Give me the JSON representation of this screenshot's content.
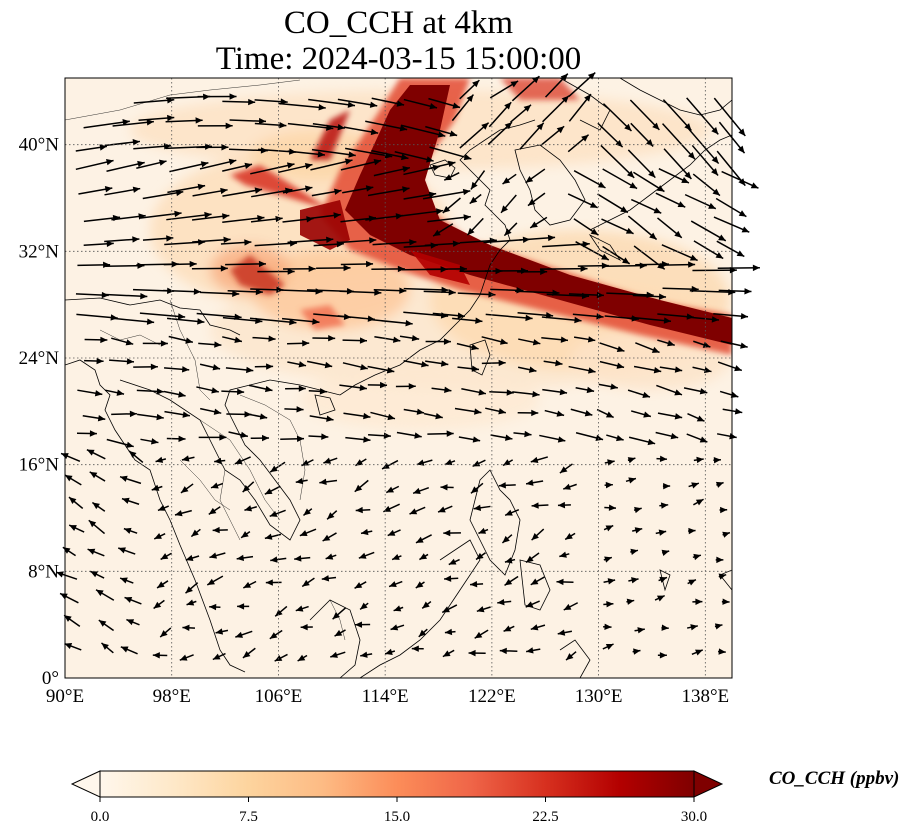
{
  "title_line1": "CO_CCH at 4km",
  "title_line2": "Time: 2024-03-15 15:00:00",
  "map": {
    "lon_range": [
      90,
      140
    ],
    "lat_range": [
      0,
      45
    ],
    "x_ticks": [
      90,
      98,
      106,
      114,
      122,
      130,
      138
    ],
    "x_tick_labels": [
      "90°E",
      "98°E",
      "106°E",
      "114°E",
      "122°E",
      "130°E",
      "138°E"
    ],
    "y_ticks": [
      0,
      8,
      16,
      24,
      32,
      40
    ],
    "y_tick_labels": [
      "0°",
      "8°N",
      "16°N",
      "24°N",
      "32°N",
      "40°N"
    ],
    "gridlines": "dotted",
    "field": "CO concentration (filled shading)",
    "wind_vectors": "quiver arrows"
  },
  "colorbar": {
    "label": "CO_CCH (ppbv)",
    "min": 0.0,
    "max": 30.0,
    "ticks": [
      0.0,
      7.5,
      15.0,
      22.5,
      30.0
    ],
    "tick_labels": [
      "0.0",
      "7.5",
      "15.0",
      "22.5",
      "30.0"
    ],
    "extend": "both",
    "colormap": [
      "#fff7ec",
      "#fee8c8",
      "#fdd49e",
      "#fdbb84",
      "#fc8d59",
      "#ef6548",
      "#d7301f",
      "#b30000",
      "#7f0000"
    ]
  }
}
